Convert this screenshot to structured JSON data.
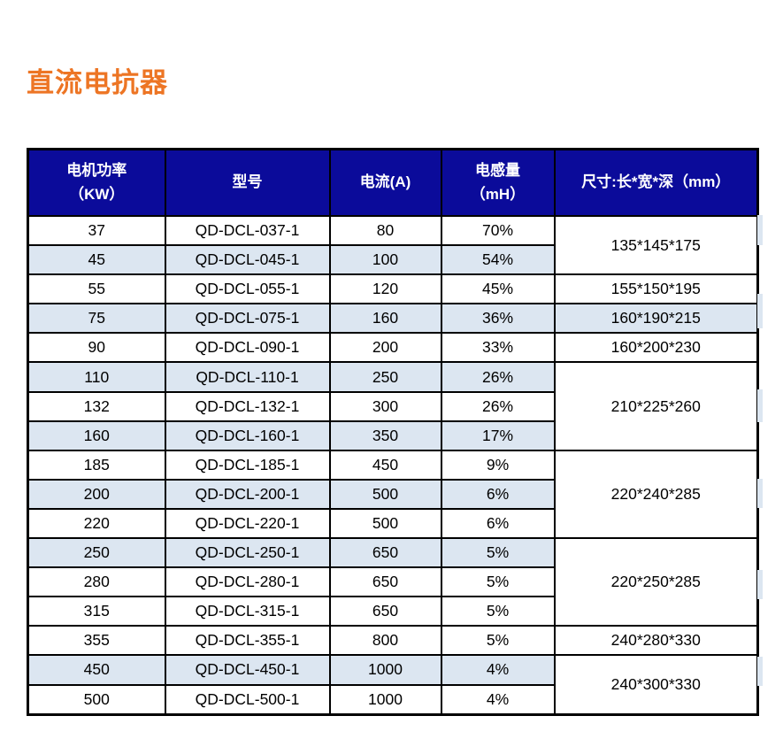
{
  "page": {
    "title": "直流电抗器",
    "title_color": "#ed7524"
  },
  "table": {
    "header_bg": "#0b0b9a",
    "stripe_color": "#dce6f1",
    "header": {
      "power_line1": "电机功率",
      "power_line2": "（KW）",
      "model": "型号",
      "current": "电流(A)",
      "inductance_line1": "电感量",
      "inductance_line2": "（mH）",
      "dimensions": "尺寸:长*宽*深（mm）"
    },
    "rows": [
      {
        "power": "37",
        "model": "QD-DCL-037-1",
        "current": "80",
        "inductance": "70%",
        "striped": false
      },
      {
        "power": "45",
        "model": "QD-DCL-045-1",
        "current": "100",
        "inductance": "54%",
        "striped": true
      },
      {
        "power": "55",
        "model": "QD-DCL-055-1",
        "current": "120",
        "inductance": "45%",
        "striped": false
      },
      {
        "power": "75",
        "model": "QD-DCL-075-1",
        "current": "160",
        "inductance": "36%",
        "striped": true
      },
      {
        "power": "90",
        "model": "QD-DCL-090-1",
        "current": "200",
        "inductance": "33%",
        "striped": false
      },
      {
        "power": "110",
        "model": "QD-DCL-110-1",
        "current": "250",
        "inductance": "26%",
        "striped": true
      },
      {
        "power": "132",
        "model": "QD-DCL-132-1",
        "current": "300",
        "inductance": "26%",
        "striped": false
      },
      {
        "power": "160",
        "model": "QD-DCL-160-1",
        "current": "350",
        "inductance": "17%",
        "striped": true
      },
      {
        "power": "185",
        "model": "QD-DCL-185-1",
        "current": "450",
        "inductance": "9%",
        "striped": false
      },
      {
        "power": "200",
        "model": "QD-DCL-200-1",
        "current": "500",
        "inductance": "6%",
        "striped": true
      },
      {
        "power": "220",
        "model": "QD-DCL-220-1",
        "current": "500",
        "inductance": "6%",
        "striped": false
      },
      {
        "power": "250",
        "model": "QD-DCL-250-1",
        "current": "650",
        "inductance": "5%",
        "striped": true
      },
      {
        "power": "280",
        "model": "QD-DCL-280-1",
        "current": "650",
        "inductance": "5%",
        "striped": false
      },
      {
        "power": "315",
        "model": "QD-DCL-315-1",
        "current": "650",
        "inductance": "5%",
        "striped": false
      },
      {
        "power": "355",
        "model": "QD-DCL-355-1",
        "current": "800",
        "inductance": "5%",
        "striped": false
      },
      {
        "power": "450",
        "model": "QD-DCL-450-1",
        "current": "1000",
        "inductance": "4%",
        "striped": true
      },
      {
        "power": "500",
        "model": "QD-DCL-500-1",
        "current": "1000",
        "inductance": "4%",
        "striped": false
      }
    ],
    "dimension_cells": [
      {
        "value": "135*145*175",
        "span": 2,
        "striped": false
      },
      {
        "value": "155*150*195",
        "span": 1,
        "striped": false
      },
      {
        "value": "160*190*215",
        "span": 1,
        "striped": true
      },
      {
        "value": "160*200*230",
        "span": 1,
        "striped": false
      },
      {
        "value": "210*225*260",
        "span": 3,
        "striped": false
      },
      {
        "value": "220*240*285",
        "span": 3,
        "striped": false
      },
      {
        "value": "220*250*285",
        "span": 3,
        "striped": false
      },
      {
        "value": "240*280*330",
        "span": 1,
        "striped": false
      },
      {
        "value": "240*300*330",
        "span": 2,
        "striped": false
      }
    ]
  }
}
